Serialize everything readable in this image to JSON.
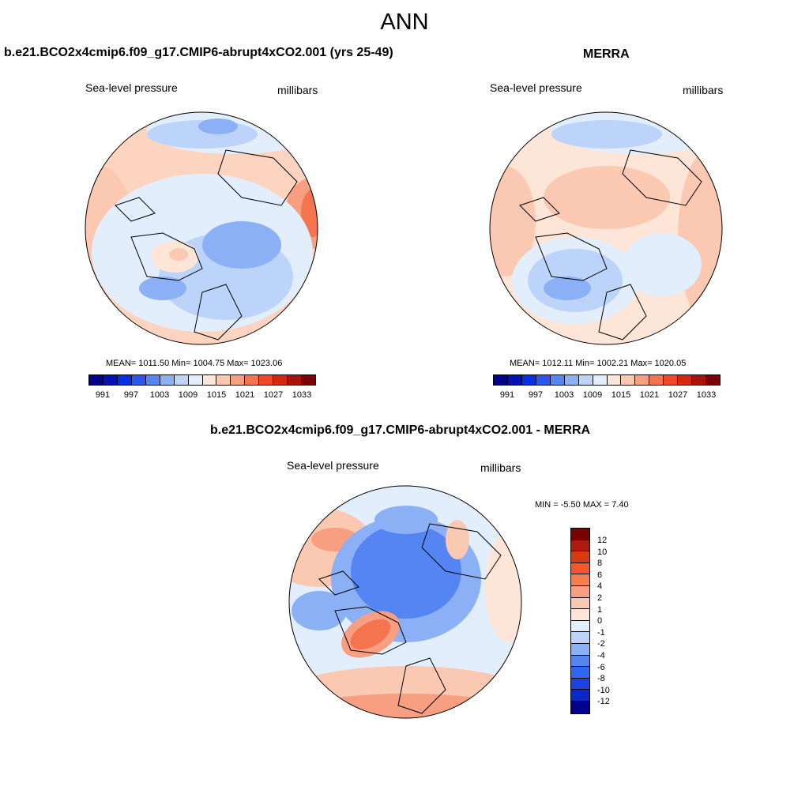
{
  "main_title": "ANN",
  "panels": {
    "model": {
      "title": "b.e21.BCO2x4cmip6.f09_g17.CMIP6-abrupt4xCO2.001 (yrs 25-49)",
      "variable": "Sea-level pressure",
      "units": "millibars",
      "stats": "MEAN= 1011.50  Min= 1004.75  Max= 1023.06"
    },
    "obs": {
      "title": "MERRA",
      "variable": "Sea-level pressure",
      "units": "millibars",
      "stats": "MEAN= 1012.11  Min= 1002.21  Max= 1020.05"
    },
    "diff": {
      "title": "b.e21.BCO2x4cmip6.f09_g17.CMIP6-abrupt4xCO2.001 - MERRA",
      "variable": "Sea-level pressure",
      "units": "millibars",
      "stats": "MIN =  -5.50 MAX =   7.40"
    }
  },
  "abs_colorbar": {
    "colors": [
      "#00008f",
      "#0011b5",
      "#0033dd",
      "#2958ef",
      "#5585f2",
      "#8cb0f6",
      "#bcd4fa",
      "#e3eefc",
      "#fde6d8",
      "#fbc8b1",
      "#f79f80",
      "#f3744f",
      "#ec4a22",
      "#cf2a0d",
      "#a8140a",
      "#7b0000"
    ],
    "labels": [
      "991",
      "997",
      "1003",
      "1009",
      "1015",
      "1021",
      "1027",
      "1033"
    ]
  },
  "diff_colorbar": {
    "colors": [
      "#7b0000",
      "#b01a0c",
      "#d83a14",
      "#f2582a",
      "#f57d50",
      "#f79f80",
      "#fbc8b1",
      "#fde6d8",
      "#e3eefc",
      "#bcd4fa",
      "#8cb0f6",
      "#5585f2",
      "#3366ee",
      "#1a44e0",
      "#0a28c8",
      "#00008f"
    ],
    "labels": [
      "12",
      "10",
      "8",
      "6",
      "4",
      "2",
      "1",
      "0",
      "-1",
      "-2",
      "-4",
      "-6",
      "-8",
      "-10",
      "-12"
    ]
  }
}
